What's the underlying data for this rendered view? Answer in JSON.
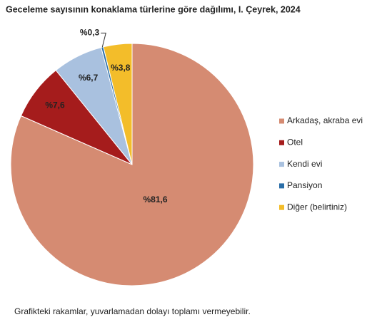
{
  "chart_data": {
    "type": "pie",
    "title": "Geceleme sayısının konaklama türlerine göre dağılımı, I. Çeyrek, 2024",
    "categories": [
      "Arkadaş, akraba evi",
      "Otel",
      "Kendi evi",
      "Pansiyon",
      "Diğer (belirtiniz)"
    ],
    "values": [
      81.6,
      7.6,
      6.7,
      0.3,
      3.8
    ],
    "value_labels": [
      "%81,6",
      "%7,6",
      "%6,7",
      "%0,3",
      "%3,8"
    ],
    "colors": [
      "#d58b72",
      "#a51c1c",
      "#a9c1df",
      "#2a6ea8",
      "#f3bd2a"
    ],
    "legend": "right",
    "note": "Grafikteki rakamlar, yuvarlamadan dolayı toplamı vermeyebilir."
  }
}
